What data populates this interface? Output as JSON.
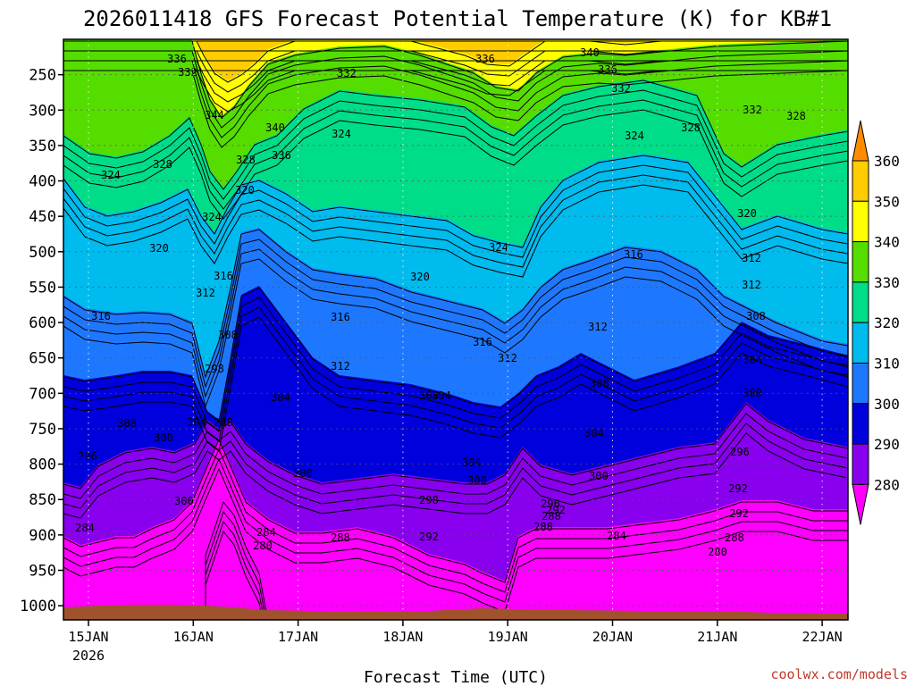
{
  "chart_data": {
    "type": "heatmap",
    "title": "2026011418 GFS Forecast Potential Temperature (K) for KB#1",
    "xlabel": "Forecast Time (UTC)",
    "ylabel": "",
    "credit": "coolwx.com/models",
    "x_ticks": [
      "15JAN",
      "16JAN",
      "17JAN",
      "18JAN",
      "19JAN",
      "20JAN",
      "21JAN",
      "22JAN"
    ],
    "x_sub_label": "2026",
    "y_ticks": [
      250,
      300,
      350,
      400,
      450,
      500,
      550,
      600,
      650,
      700,
      750,
      800,
      850,
      900,
      950,
      1000
    ],
    "ylim": [
      1020,
      200
    ],
    "colorbar": {
      "labels": [
        360,
        350,
        340,
        330,
        320,
        310,
        300,
        290,
        280
      ],
      "colors": [
        "#ff8c00",
        "#ffcc00",
        "#ffff00",
        "#55dd00",
        "#00dd88",
        "#00bbee",
        "#1e78ff",
        "#0000dd",
        "#8800ee",
        "#ff00ff"
      ]
    },
    "band_colors": {
      "b280": "#ff00ff",
      "b290": "#8800ee",
      "b300": "#0000dd",
      "b310": "#1e78ff",
      "b320": "#00bbee",
      "b330": "#00dd88",
      "b340": "#55dd00",
      "b350": "#ffff00",
      "b360": "#ffcc00",
      "b370": "#ff8c00",
      "terrain": "#a0522d"
    },
    "contour_labels": [
      "336",
      "332",
      "344",
      "340",
      "336",
      "332",
      "324",
      "328",
      "336",
      "340",
      "336",
      "332",
      "324",
      "328",
      "332",
      "328",
      "324",
      "328",
      "320",
      "324",
      "320",
      "324",
      "320",
      "316",
      "312",
      "320",
      "316",
      "316",
      "316",
      "312",
      "312",
      "308",
      "298",
      "304",
      "312",
      "316",
      "308",
      "312",
      "312",
      "304",
      "304",
      "308",
      "308",
      "300",
      "304",
      "304",
      "288",
      "296",
      "300",
      "300",
      "292",
      "304",
      "300",
      "296",
      "298",
      "292",
      "288",
      "284",
      "280",
      "288",
      "292",
      "296",
      "292",
      "288",
      "284",
      "288",
      "280",
      "284",
      "300",
      "300",
      "304"
    ]
  }
}
